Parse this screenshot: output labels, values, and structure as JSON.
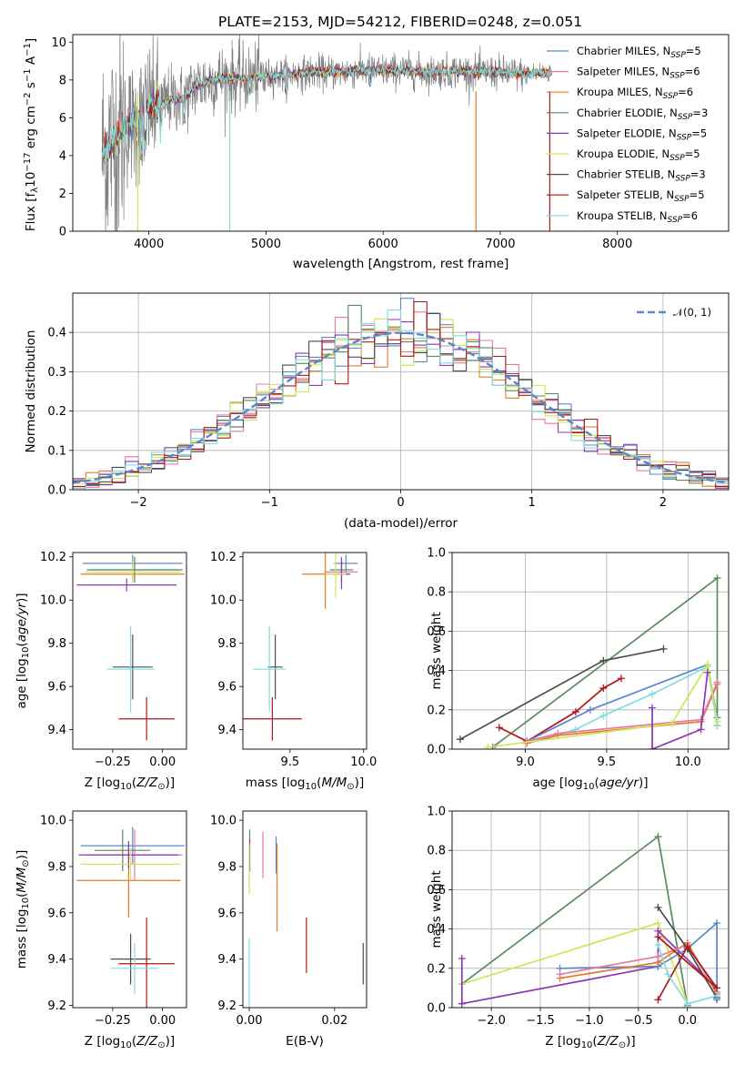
{
  "figure_title": "PLATE=2153, MJD=54212, FIBERID=0248, z=0.051",
  "chart_data": [
    {
      "id": "spectrum",
      "type": "line",
      "title": "PLATE=2153, MJD=54212, FIBERID=0248, z=0.051",
      "xlabel": "wavelength [Angstrom, rest frame]",
      "ylabel": "Flux [fλ10⁻¹⁷ erg cm⁻² s⁻¹ A⁻¹]",
      "xlim": [
        3350,
        8950
      ],
      "ylim": [
        0,
        10.4
      ],
      "xticks": [
        4000,
        5000,
        6000,
        7000,
        8000
      ],
      "yticks": [
        0,
        2,
        4,
        6,
        8,
        10
      ],
      "grid": false,
      "legend_position": "right",
      "continuum": {
        "x": [
          3600,
          3700,
          3800,
          3900,
          4000,
          4100,
          4200,
          4300,
          4400,
          4500,
          4600,
          4800,
          5000,
          5200,
          5400,
          5600,
          5800,
          6000,
          6200,
          6400,
          6600,
          6800,
          7000,
          7200,
          7400,
          7600,
          7800,
          8000,
          8200,
          8400,
          8600,
          8800,
          8900
        ],
        "y": [
          4.1,
          4.8,
          5.6,
          5.8,
          6.6,
          6.7,
          7.0,
          7.0,
          7.7,
          7.9,
          8.1,
          8.1,
          8.2,
          8.3,
          8.4,
          8.4,
          8.5,
          8.5,
          8.5,
          8.4,
          8.5,
          8.4,
          8.4,
          8.3,
          8.4,
          8.6,
          8.6,
          8.5,
          8.5,
          8.4,
          8.2,
          8.1,
          8.0
        ]
      },
      "series": [
        {
          "name": "Chabrier MILES, N$_{SSP}$=5",
          "label": "Chabrier MILES, N",
          "sub": "SSP",
          "suffix": "=5",
          "color": "#5b87c9"
        },
        {
          "name": "Salpeter MILES, N$_{SSP}$=6",
          "label": "Salpeter MILES, N",
          "sub": "SSP",
          "suffix": "=6",
          "color": "#e8799e"
        },
        {
          "name": "Kroupa MILES, N$_{SSP}$=6",
          "label": "Kroupa MILES, N",
          "sub": "SSP",
          "suffix": "=6",
          "color": "#e07b2c"
        },
        {
          "name": "Chabrier ELODIE, N$_{SSP}$=3",
          "label": "Chabrier ELODIE, N",
          "sub": "SSP",
          "suffix": "=3",
          "color": "#5a8a5e"
        },
        {
          "name": "Salpeter ELODIE, N$_{SSP}$=5",
          "label": "Salpeter ELODIE, N",
          "sub": "SSP",
          "suffix": "=5",
          "color": "#8e35b5"
        },
        {
          "name": "Kroupa ELODIE, N$_{SSP}$=5",
          "label": "Kroupa ELODIE, N",
          "sub": "SSP",
          "suffix": "=5",
          "color": "#cfe65a"
        },
        {
          "name": "Chabrier STELIB, N$_{SSP}$=3",
          "label": "Chabrier STELIB, N",
          "sub": "SSP",
          "suffix": "=3",
          "color": "#4d4d4d"
        },
        {
          "name": "Salpeter STELIB, N$_{SSP}$=5",
          "label": "Salpeter STELIB, N",
          "sub": "SSP",
          "suffix": "=5",
          "color": "#b01818"
        },
        {
          "name": "Kroupa STELIB, N$_{SSP}$=6",
          "label": "Kroupa STELIB, N",
          "sub": "SSP",
          "suffix": "=6",
          "color": "#7fdde0"
        }
      ],
      "data_color": "#808080"
    },
    {
      "id": "residuals",
      "type": "line",
      "xlabel": "(data-model)/error",
      "ylabel": "Normed distribution",
      "xlim": [
        -2.5,
        2.5
      ],
      "ylim": [
        0,
        0.5
      ],
      "xticks": [
        -2,
        -1,
        0,
        1,
        2
      ],
      "yticks": [
        0.0,
        0.1,
        0.2,
        0.3,
        0.4
      ],
      "grid": true,
      "legend_position": "top-right",
      "legend_label": "𝒩(0, 1)",
      "gaussian": {
        "mean": 0,
        "sigma": 1,
        "color": "#5b87c9"
      }
    },
    {
      "id": "age-vs-Z",
      "type": "scatter",
      "xlabel": "Z [log₁₀(Z/Z⊙)]",
      "ylabel": "age  [log₁₀(age/yr)]",
      "xlim": [
        -0.45,
        0.12
      ],
      "ylim": [
        9.31,
        10.22
      ],
      "xticks": [
        -0.25,
        0.0
      ],
      "yticks": [
        9.4,
        9.6,
        9.8,
        10.0,
        10.2
      ],
      "points": [
        {
          "x": -0.15,
          "xe": 0.25,
          "y": 10.17,
          "ye": 0.04,
          "c": 0
        },
        {
          "x": -0.14,
          "xe": 0.22,
          "y": 10.14,
          "ye": 0.03,
          "c": 1
        },
        {
          "x": -0.15,
          "xe": 0.26,
          "y": 10.12,
          "ye": 0.03,
          "c": 2
        },
        {
          "x": -0.14,
          "xe": 0.24,
          "y": 10.14,
          "ye": 0.06,
          "c": 3
        },
        {
          "x": -0.18,
          "xe": 0.25,
          "y": 10.07,
          "ye": 0.03,
          "c": 4
        },
        {
          "x": -0.15,
          "xe": 0.24,
          "y": 10.13,
          "ye": 0.05,
          "c": 5
        },
        {
          "x": -0.15,
          "xe": 0.1,
          "y": 9.69,
          "ye": 0.15,
          "c": 6
        },
        {
          "x": -0.08,
          "xe": 0.14,
          "y": 9.45,
          "ye": 0.1,
          "c": 7
        },
        {
          "x": -0.16,
          "xe": 0.12,
          "y": 9.68,
          "ye": 0.2,
          "c": 8
        }
      ]
    },
    {
      "id": "age-vs-mass",
      "type": "scatter",
      "xlabel": "mass [log₁₀(M/M⊙)]",
      "ylabel": "",
      "xlim": [
        9.18,
        10.02
      ],
      "ylim": [
        9.31,
        10.22
      ],
      "xticks": [
        9.5,
        10.0
      ],
      "yticks": [
        9.4,
        9.6,
        9.8,
        10.0,
        10.2
      ],
      "points": [
        {
          "x": 9.88,
          "xe": 0.08,
          "y": 10.17,
          "ye": 0.04,
          "c": 0
        },
        {
          "x": 9.85,
          "xe": 0.11,
          "y": 10.13,
          "ye": 0.04,
          "c": 1
        },
        {
          "x": 9.74,
          "xe": 0.16,
          "y": 10.12,
          "ye": 0.16,
          "c": 2
        },
        {
          "x": 9.85,
          "xe": 0.08,
          "y": 10.14,
          "ye": 0.06,
          "c": 3
        },
        {
          "x": 9.85,
          "xe": 0.06,
          "y": 10.12,
          "ye": 0.07,
          "c": 4
        },
        {
          "x": 9.81,
          "xe": 0.07,
          "y": 10.12,
          "ye": 0.11,
          "c": 5
        },
        {
          "x": 9.4,
          "xe": 0.05,
          "y": 9.69,
          "ye": 0.15,
          "c": 6
        },
        {
          "x": 9.38,
          "xe": 0.2,
          "y": 9.45,
          "ye": 0.1,
          "c": 7
        },
        {
          "x": 9.36,
          "xe": 0.11,
          "y": 9.68,
          "ye": 0.2,
          "c": 8
        }
      ]
    },
    {
      "id": "weight-vs-age",
      "type": "line",
      "xlabel": "age  [log₁₀(age/yr)]",
      "ylabel": "mass weight",
      "xlim": [
        8.55,
        10.25
      ],
      "ylim": [
        0,
        1.0
      ],
      "xticks": [
        9.0,
        9.5,
        10.0
      ],
      "yticks": [
        0.0,
        0.2,
        0.4,
        0.6,
        0.8,
        1.0
      ],
      "grid": true,
      "series": [
        {
          "c": 3,
          "x": [
            8.8,
            10.18,
            10.18
          ],
          "y": [
            0.01,
            0.87,
            0.12
          ]
        },
        {
          "c": 6,
          "x": [
            8.6,
            9.48,
            9.85
          ],
          "y": [
            0.05,
            0.45,
            0.51
          ]
        },
        {
          "c": 7,
          "x": [
            8.84,
            9.01,
            9.31,
            9.48,
            9.59
          ],
          "y": [
            0.11,
            0.04,
            0.19,
            0.31,
            0.36
          ]
        },
        {
          "c": 0,
          "x": [
            9.01,
            9.4,
            10.12,
            10.18
          ],
          "y": [
            0.04,
            0.2,
            0.43,
            0.16
          ]
        },
        {
          "c": 8,
          "x": [
            9.01,
            9.31,
            9.48,
            9.78,
            10.12,
            10.18
          ],
          "y": [
            0.03,
            0.1,
            0.17,
            0.28,
            0.42,
            0.12
          ]
        },
        {
          "c": 2,
          "x": [
            9.01,
            9.2,
            10.08,
            10.18
          ],
          "y": [
            0.03,
            0.07,
            0.14,
            0.33
          ]
        },
        {
          "c": 1,
          "x": [
            9.01,
            9.2,
            10.08,
            10.18
          ],
          "y": [
            0.04,
            0.08,
            0.15,
            0.34
          ]
        },
        {
          "c": 5,
          "x": [
            8.77,
            9.9,
            10.12,
            10.18
          ],
          "y": [
            0.01,
            0.13,
            0.43,
            0.14
          ]
        },
        {
          "c": 4,
          "x": [
            9.78,
            9.78,
            10.08,
            10.12
          ],
          "y": [
            0.21,
            0.0,
            0.1,
            0.39
          ]
        }
      ]
    },
    {
      "id": "mass-vs-Z",
      "type": "scatter",
      "xlabel": "Z [log₁₀(Z/Z⊙)]",
      "ylabel": "mass [log₁₀(M/M⊙)]",
      "xlim": [
        -0.45,
        0.12
      ],
      "ylim": [
        9.19,
        10.04
      ],
      "xticks": [
        -0.25,
        0.0
      ],
      "yticks": [
        9.2,
        9.4,
        9.6,
        9.8,
        10.0
      ],
      "points": [
        {
          "x": -0.15,
          "xe": 0.26,
          "y": 9.89,
          "ye": 0.08,
          "c": 0
        },
        {
          "x": -0.14,
          "xe": 0.24,
          "y": 9.85,
          "ye": 0.11,
          "c": 1
        },
        {
          "x": -0.17,
          "xe": 0.26,
          "y": 9.74,
          "ye": 0.16,
          "c": 2
        },
        {
          "x": -0.2,
          "xe": 0.14,
          "y": 9.87,
          "ye": 0.09,
          "c": 3
        },
        {
          "x": -0.17,
          "xe": 0.25,
          "y": 9.85,
          "ye": 0.06,
          "c": 4
        },
        {
          "x": -0.16,
          "xe": 0.25,
          "y": 9.81,
          "ye": 0.07,
          "c": 5
        },
        {
          "x": -0.16,
          "xe": 0.1,
          "y": 9.4,
          "ye": 0.11,
          "c": 6
        },
        {
          "x": -0.08,
          "xe": 0.14,
          "y": 9.38,
          "ye": 0.2,
          "c": 7
        },
        {
          "x": -0.14,
          "xe": 0.12,
          "y": 9.36,
          "ye": 0.11,
          "c": 8
        }
      ]
    },
    {
      "id": "mass-vs-ebv",
      "type": "scatter",
      "xlabel": "E(B-V)",
      "ylabel": "",
      "xlim": [
        -0.0015,
        0.0275
      ],
      "ylim": [
        9.19,
        10.04
      ],
      "xticks": [
        0.0,
        0.02
      ],
      "yticks": [
        9.2,
        9.4,
        9.6,
        9.8,
        10.0
      ],
      "points": [
        {
          "x": 0.0063,
          "y": 9.85,
          "ye": 0.08,
          "c": 0
        },
        {
          "x": 0.0032,
          "y": 9.85,
          "ye": 0.1,
          "c": 1
        },
        {
          "x": 0.0065,
          "y": 9.71,
          "ye": 0.19,
          "c": 2
        },
        {
          "x": 0.0001,
          "y": 9.87,
          "ye": 0.09,
          "c": 3
        },
        {
          "x": 0.0001,
          "y": 9.85,
          "ye": 0.07,
          "c": 4
        },
        {
          "x": 0.0,
          "y": 9.79,
          "ye": 0.11,
          "c": 5
        },
        {
          "x": 0.0267,
          "y": 9.38,
          "ye": 0.09,
          "c": 6
        },
        {
          "x": 0.0134,
          "y": 9.46,
          "ye": 0.12,
          "c": 7
        },
        {
          "x": 0.0,
          "y": 9.34,
          "ye": 0.15,
          "c": 8
        }
      ]
    },
    {
      "id": "weight-vs-Z",
      "type": "line",
      "xlabel": "Z [log₁₀(Z/Z⊙)]",
      "ylabel": "mass weight",
      "xlim": [
        -2.4,
        0.42
      ],
      "ylim": [
        0,
        1.0
      ],
      "xticks": [
        -2.0,
        -1.5,
        -1.0,
        -0.5,
        0.0
      ],
      "yticks": [
        0.0,
        0.2,
        0.4,
        0.6,
        0.8,
        1.0
      ],
      "grid": true,
      "series": [
        {
          "c": 3,
          "x": [
            -2.3,
            -0.3,
            0.0
          ],
          "y": [
            0.12,
            0.87,
            0.01
          ]
        },
        {
          "c": 5,
          "x": [
            -2.3,
            -0.3,
            0.0
          ],
          "y": [
            0.12,
            0.43,
            0.02
          ]
        },
        {
          "c": 4,
          "x": [
            -2.3,
            -2.3,
            -0.3,
            -0.3,
            0.3
          ],
          "y": [
            0.25,
            0.02,
            0.21,
            0.39,
            0.1
          ]
        },
        {
          "c": 0,
          "x": [
            -1.3,
            -0.3,
            0.0,
            0.3,
            0.3
          ],
          "y": [
            0.2,
            0.21,
            0.3,
            0.43,
            0.04
          ]
        },
        {
          "c": 2,
          "x": [
            -1.3,
            -0.3,
            0.0,
            0.3
          ],
          "y": [
            0.15,
            0.23,
            0.33,
            0.07
          ]
        },
        {
          "c": 1,
          "x": [
            -1.3,
            -0.3,
            0.0,
            0.3
          ],
          "y": [
            0.17,
            0.26,
            0.32,
            0.08
          ]
        },
        {
          "c": 6,
          "x": [
            -0.3,
            0.0,
            0.3
          ],
          "y": [
            0.51,
            0.3,
            0.05
          ]
        },
        {
          "c": 7,
          "x": [
            -0.3,
            0.0,
            0.3,
            -0.3
          ],
          "y": [
            0.04,
            0.31,
            0.1,
            0.36
          ]
        },
        {
          "c": 8,
          "x": [
            -0.3,
            -0.2,
            0.0,
            0.3
          ],
          "y": [
            0.32,
            0.17,
            0.02,
            0.06
          ]
        }
      ]
    }
  ]
}
